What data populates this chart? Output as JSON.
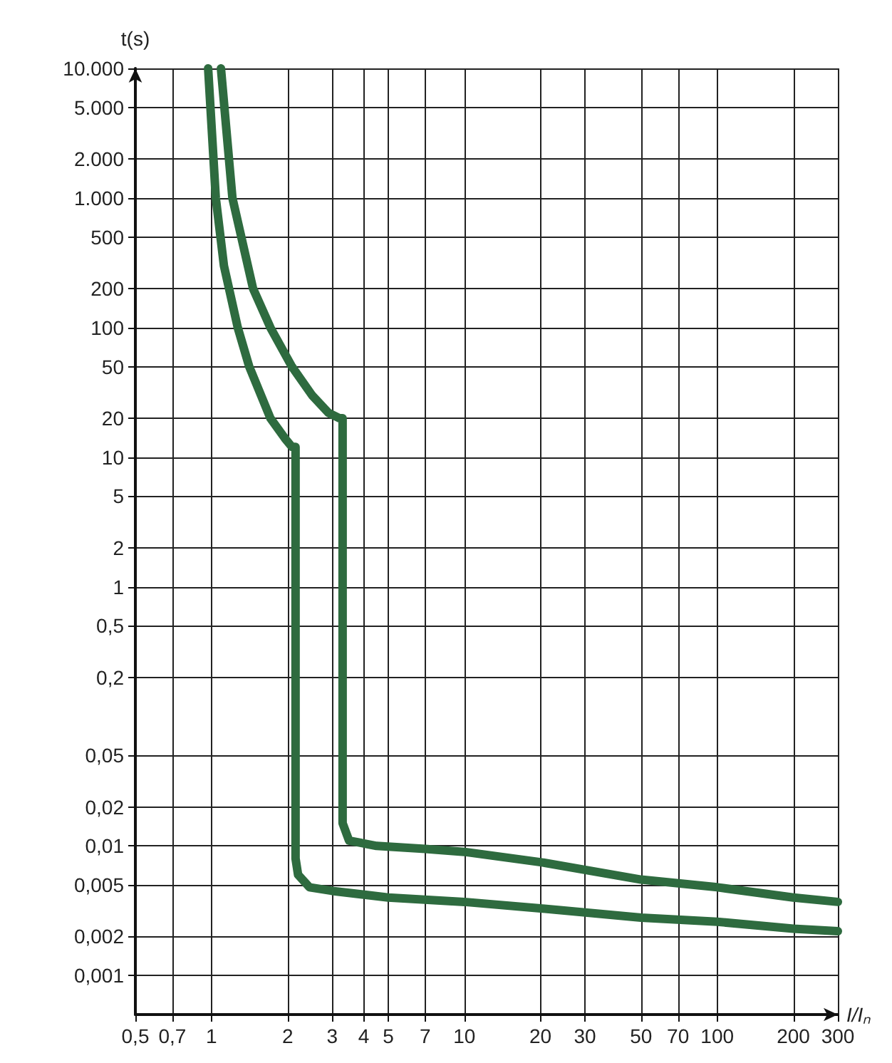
{
  "chart_data": {
    "type": "line",
    "xlabel": "I/Iₙ",
    "ylabel": "t(s)",
    "log": "xy",
    "grid": true,
    "marker": "none",
    "line_style": "solid",
    "xlim": [
      0.5,
      300
    ],
    "ylim": [
      0.0005,
      10000
    ],
    "xticks": [
      {
        "value": 0.5,
        "label": "0,5"
      },
      {
        "value": 0.7,
        "label": "0,7"
      },
      1,
      2,
      3,
      4,
      5,
      7,
      10,
      20,
      30,
      50,
      70,
      100,
      200,
      300
    ],
    "yticks": [
      {
        "value": 0.001,
        "label": "0,001"
      },
      {
        "value": 0.002,
        "label": "0,002"
      },
      {
        "value": 0.005,
        "label": "0,005"
      },
      {
        "value": 0.01,
        "label": "0,01"
      },
      {
        "value": 0.02,
        "label": "0,02"
      },
      {
        "value": 0.05,
        "label": "0,05"
      },
      {
        "value": 0.2,
        "label": "0,2"
      },
      {
        "value": 0.5,
        "label": "0,5"
      },
      1,
      2,
      5,
      10,
      20,
      50,
      100,
      200,
      500,
      {
        "value": 1000,
        "label": "1.000"
      },
      {
        "value": 2000,
        "label": "2.000"
      },
      {
        "value": 5000,
        "label": "5.000"
      },
      {
        "value": 10000,
        "label": "10.000"
      }
    ],
    "series": [
      {
        "color": "#2e6b3f",
        "x": [
          0.97,
          1.04,
          1.12,
          1.27,
          1.41,
          1.71,
          1.95,
          2.08,
          2.15,
          2.15,
          2.2,
          2.44,
          3,
          5,
          10,
          20,
          50,
          100,
          200,
          300
        ],
        "values": [
          10000,
          1000,
          300,
          100,
          50,
          20,
          14,
          12,
          12,
          0.008,
          0.006,
          0.0048,
          0.0045,
          0.004,
          0.0037,
          0.0033,
          0.0028,
          0.0026,
          0.0023,
          0.0022
        ]
      },
      {
        "color": "#2e6b3f",
        "x": [
          1.09,
          1.21,
          1.46,
          1.71,
          2.08,
          2.5,
          2.9,
          3.2,
          3.3,
          3.3,
          3.5,
          4.5,
          7,
          10,
          20,
          50,
          100,
          200,
          300
        ],
        "values": [
          10000,
          1000,
          200,
          100,
          50,
          30,
          22,
          20,
          20,
          0.015,
          0.011,
          0.01,
          0.0095,
          0.009,
          0.0075,
          0.0055,
          0.0048,
          0.004,
          0.0037
        ]
      }
    ]
  }
}
